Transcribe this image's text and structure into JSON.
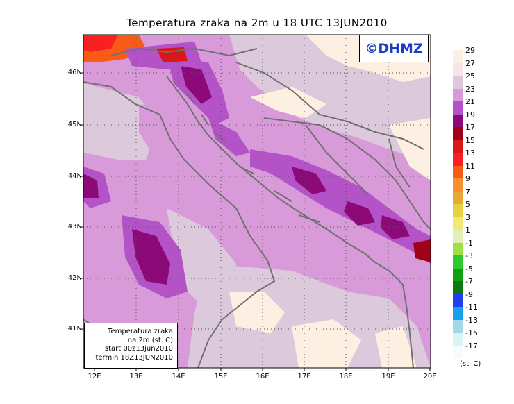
{
  "title": "Temperatura zraka na 2m u 18 UTC 13JUN2010",
  "logo_text": "©DHMZ",
  "info_box": {
    "line1": "Temperatura zraka",
    "line2": "na 2m (st. C)",
    "line3": "start 00z13jun2010",
    "line4": "termin 18Z13JUN2010"
  },
  "lat_ticks": [
    "46N",
    "45N",
    "44N",
    "43N",
    "42N",
    "41N"
  ],
  "lon_ticks": [
    "12E",
    "13E",
    "14E",
    "15E",
    "16E",
    "17E",
    "18E",
    "19E",
    "20E"
  ],
  "legend": {
    "unit": "(st. C)",
    "entries": [
      {
        "label": "29",
        "color": "#fdf0e2"
      },
      {
        "label": "27",
        "color": "#f6e6ea"
      },
      {
        "label": "25",
        "color": "#dccadc"
      },
      {
        "label": "23",
        "color": "#d89ad8"
      },
      {
        "label": "21",
        "color": "#b452c8"
      },
      {
        "label": "19",
        "color": "#8c0a78"
      },
      {
        "label": "17",
        "color": "#a00018"
      },
      {
        "label": "15",
        "color": "#d81818"
      },
      {
        "label": "13",
        "color": "#f82020"
      },
      {
        "label": "11",
        "color": "#f85a18"
      },
      {
        "label": "9",
        "color": "#f89030"
      },
      {
        "label": "7",
        "color": "#e8a838"
      },
      {
        "label": "5",
        "color": "#e8d040"
      },
      {
        "label": "3",
        "color": "#f0e878"
      },
      {
        "label": "1",
        "color": "#e0f0b8"
      },
      {
        "label": "-1",
        "color": "#a0e040"
      },
      {
        "label": "-3",
        "color": "#30c830"
      },
      {
        "label": "-5",
        "color": "#10a010"
      },
      {
        "label": "-7",
        "color": "#107810"
      },
      {
        "label": "-9",
        "color": "#2040f0"
      },
      {
        "label": "-11",
        "color": "#18a0f0"
      },
      {
        "label": "-13",
        "color": "#a0d8e8"
      },
      {
        "label": "-15",
        "color": "#d8f4f4"
      },
      {
        "label": "-17",
        "color": "#f4fcfc"
      }
    ]
  }
}
